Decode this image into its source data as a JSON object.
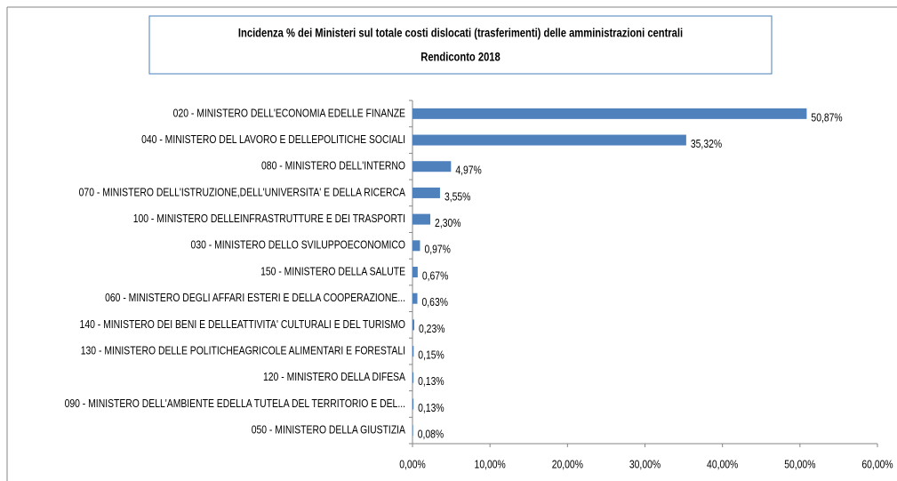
{
  "chart_data": {
    "type": "bar",
    "orientation": "horizontal",
    "title": "Incidenza % dei Ministeri sul totale costi dislocati (trasferimenti) delle amministrazioni centrali",
    "subtitle": "Rendiconto 2018",
    "categories": [
      "020 - MINISTERO DELL'ECONOMIA EDELLE FINANZE",
      "040 - MINISTERO DEL LAVORO E DELLEPOLITICHE SOCIALI",
      "080 - MINISTERO DELL'INTERNO",
      "070 - MINISTERO DELL'ISTRUZIONE,DELL'UNIVERSITA' E DELLA RICERCA",
      "100 - MINISTERO DELLEINFRASTRUTTURE E DEI TRASPORTI",
      "030 - MINISTERO DELLO SVILUPPOECONOMICO",
      "150 - MINISTERO DELLA SALUTE",
      "060 - MINISTERO DEGLI AFFARI ESTERI E DELLA COOPERAZIONE...",
      "140 - MINISTERO DEI BENI E DELLEATTIVITA' CULTURALI E DEL TURISMO",
      "130 - MINISTERO DELLE POLITICHEAGRICOLE ALIMENTARI E FORESTALI",
      "120 - MINISTERO DELLA DIFESA",
      "090 - MINISTERO DELL'AMBIENTE EDELLA TUTELA DEL TERRITORIO E DEL...",
      "050 - MINISTERO DELLA GIUSTIZIA"
    ],
    "values": [
      50.87,
      35.32,
      4.97,
      3.55,
      2.3,
      0.97,
      0.67,
      0.63,
      0.23,
      0.15,
      0.13,
      0.13,
      0.08
    ],
    "value_labels": [
      "50,87%",
      "35,32%",
      "4,97%",
      "3,55%",
      "2,30%",
      "0,97%",
      "0,67%",
      "0,63%",
      "0,23%",
      "0,15%",
      "0,13%",
      "0,13%",
      "0,08%"
    ],
    "color": "#4f81bd",
    "xlim": [
      0,
      60
    ],
    "xticks": [
      {
        "value": 0,
        "label": "0,00%"
      },
      {
        "value": 10,
        "label": "10,00%"
      },
      {
        "value": 20,
        "label": "20,00%"
      },
      {
        "value": 30,
        "label": "30,00%"
      },
      {
        "value": 40,
        "label": "40,00%"
      },
      {
        "value": 50,
        "label": "50,00%"
      },
      {
        "value": 60,
        "label": "60,00%"
      }
    ],
    "grid": false
  }
}
